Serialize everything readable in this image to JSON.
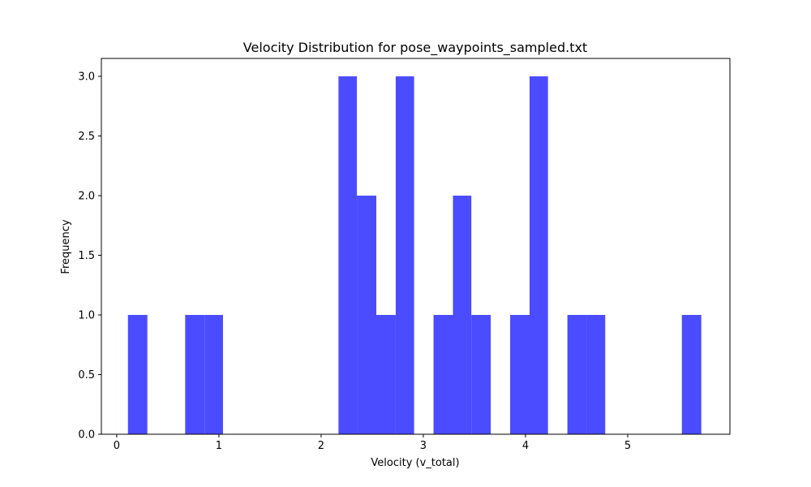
{
  "chart_data": {
    "type": "histogram",
    "title": "Velocity Distribution for pose_waypoints_sampled.txt",
    "xlabel": "Velocity (v_total)",
    "ylabel": "Frequency",
    "xlim": [
      -0.15,
      6.0
    ],
    "ylim": [
      0,
      3.15
    ],
    "xticks": [
      0,
      1,
      2,
      3,
      4,
      5
    ],
    "xtick_labels": [
      "0",
      "1",
      "2",
      "3",
      "4",
      "5"
    ],
    "yticks": [
      0,
      0.5,
      1,
      1.5,
      2,
      2.5,
      3
    ],
    "ytick_labels": [
      "0.0",
      "0.5",
      "1.0",
      "1.5",
      "2.0",
      "2.5",
      "3.0"
    ],
    "grid": false,
    "legend": "none",
    "bar_color": "#4b4bff",
    "bins": [
      {
        "x0": 0.11,
        "x1": 0.3,
        "count": 1
      },
      {
        "x0": 0.67,
        "x1": 0.86,
        "count": 1
      },
      {
        "x0": 0.86,
        "x1": 1.04,
        "count": 1
      },
      {
        "x0": 2.17,
        "x1": 2.35,
        "count": 3
      },
      {
        "x0": 2.35,
        "x1": 2.54,
        "count": 2
      },
      {
        "x0": 2.54,
        "x1": 2.73,
        "count": 1
      },
      {
        "x0": 2.73,
        "x1": 2.91,
        "count": 3
      },
      {
        "x0": 3.1,
        "x1": 3.29,
        "count": 1
      },
      {
        "x0": 3.29,
        "x1": 3.47,
        "count": 2
      },
      {
        "x0": 3.47,
        "x1": 3.66,
        "count": 1
      },
      {
        "x0": 3.85,
        "x1": 4.04,
        "count": 1
      },
      {
        "x0": 4.04,
        "x1": 4.22,
        "count": 3
      },
      {
        "x0": 4.41,
        "x1": 4.6,
        "count": 1
      },
      {
        "x0": 4.6,
        "x1": 4.78,
        "count": 1
      },
      {
        "x0": 5.53,
        "x1": 5.72,
        "count": 1
      }
    ]
  }
}
